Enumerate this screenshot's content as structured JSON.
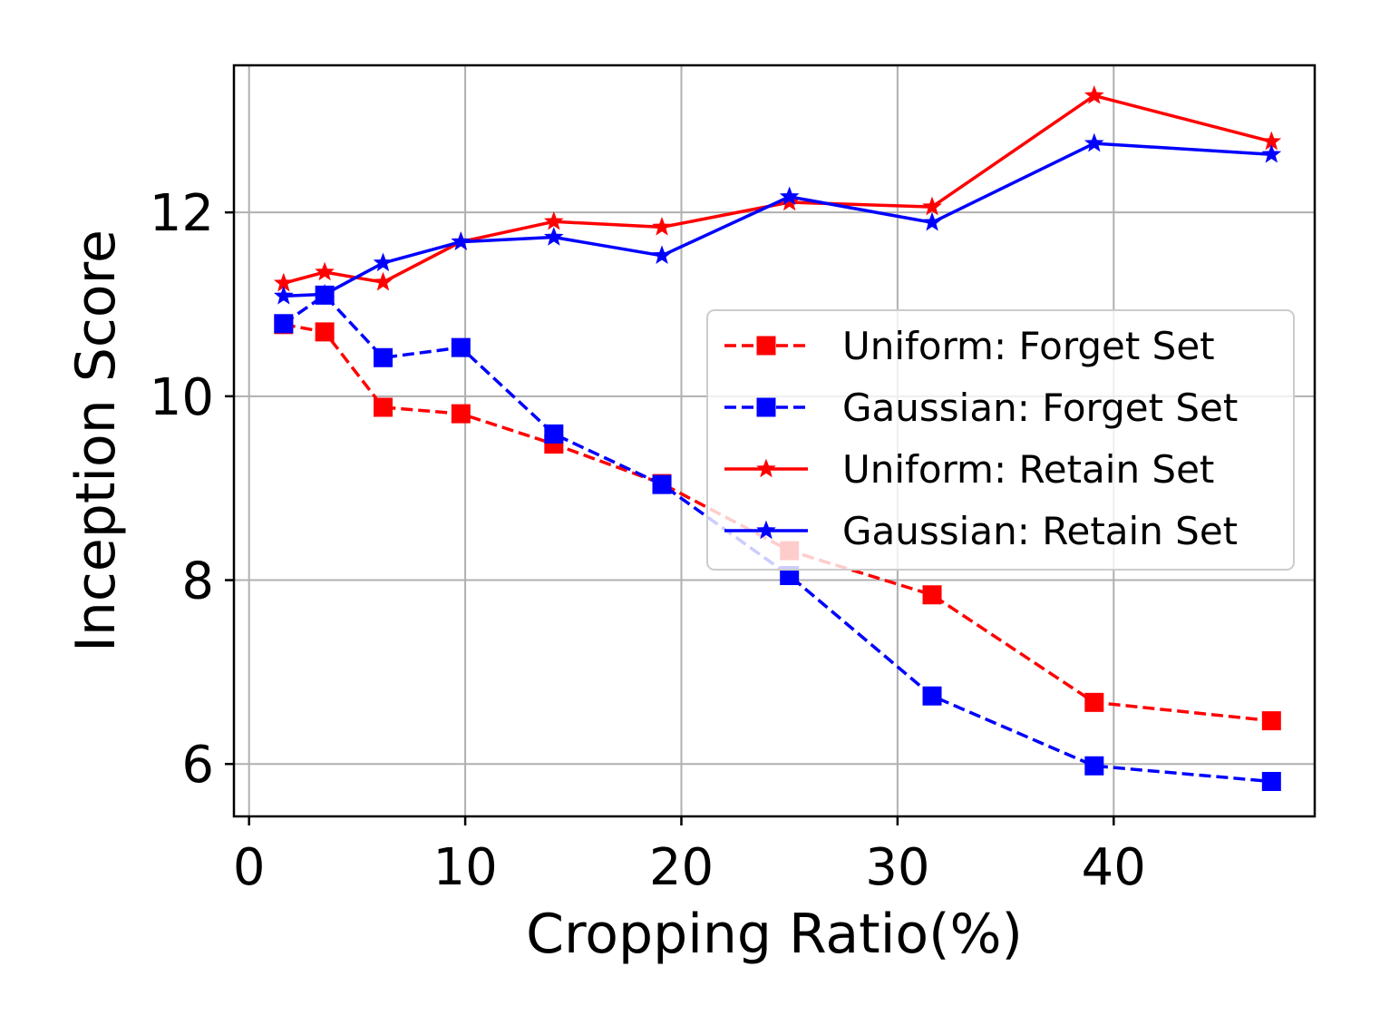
{
  "chart_data": {
    "type": "line",
    "xlabel": "Cropping Ratio(%)",
    "ylabel": "Inception Score",
    "xlim": [
      -0.7,
      49.3
    ],
    "ylim": [
      5.43,
      13.6
    ],
    "x_ticks": [
      0,
      10,
      20,
      30,
      40
    ],
    "y_ticks": [
      6,
      8,
      10,
      12
    ],
    "grid": true,
    "legend_position": "center-right",
    "x": [
      1.6,
      3.5,
      6.2,
      9.8,
      14.1,
      19.1,
      25.0,
      31.6,
      39.1,
      47.3
    ],
    "series": [
      {
        "name": "Uniform: Forget Set",
        "color": "#ff0000",
        "line_style": "dashed",
        "marker": "square",
        "values": [
          10.78,
          10.7,
          9.88,
          9.81,
          9.48,
          9.05,
          8.32,
          7.84,
          6.67,
          6.47
        ]
      },
      {
        "name": "Gaussian: Forget Set",
        "color": "#0000ff",
        "line_style": "dashed",
        "marker": "square",
        "values": [
          10.79,
          11.1,
          10.42,
          10.53,
          9.59,
          9.04,
          8.05,
          6.74,
          5.98,
          5.81
        ]
      },
      {
        "name": "Uniform: Retain Set",
        "color": "#ff0000",
        "line_style": "solid",
        "marker": "star",
        "values": [
          11.23,
          11.35,
          11.24,
          11.68,
          11.9,
          11.84,
          12.11,
          12.06,
          13.27,
          12.77
        ]
      },
      {
        "name": "Gaussian: Retain Set",
        "color": "#0000ff",
        "line_style": "solid",
        "marker": "star",
        "values": [
          11.09,
          11.11,
          11.45,
          11.68,
          11.73,
          11.53,
          12.17,
          11.89,
          12.75,
          12.63
        ]
      }
    ]
  }
}
